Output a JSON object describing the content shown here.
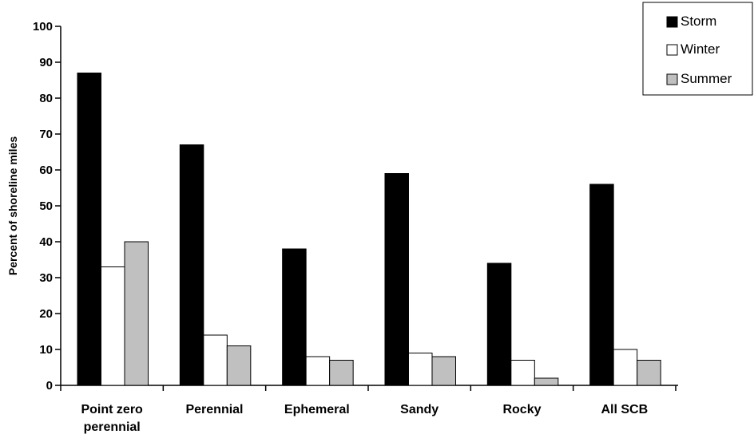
{
  "chart_data": {
    "type": "bar",
    "title": "",
    "xlabel": "",
    "ylabel": "Percent of shoreline miles",
    "ylim": [
      0,
      100
    ],
    "yticks": [
      0,
      10,
      20,
      30,
      40,
      50,
      60,
      70,
      80,
      90,
      100
    ],
    "grid": false,
    "legend_position": "top-right",
    "categories": [
      [
        "Point zero",
        "perennial"
      ],
      [
        "Perennial"
      ],
      [
        "Ephemeral"
      ],
      [
        "Sandy"
      ],
      [
        "Rocky"
      ],
      [
        "All SCB"
      ]
    ],
    "series": [
      {
        "name": "Storm",
        "color": "#000000",
        "values": [
          87,
          67,
          38,
          59,
          34,
          56
        ]
      },
      {
        "name": "Winter",
        "color": "#ffffff",
        "values": [
          33,
          14,
          8,
          9,
          7,
          10
        ]
      },
      {
        "name": "Summer",
        "color": "#c0c0c0",
        "values": [
          40,
          11,
          7,
          8,
          2,
          7
        ]
      }
    ]
  }
}
